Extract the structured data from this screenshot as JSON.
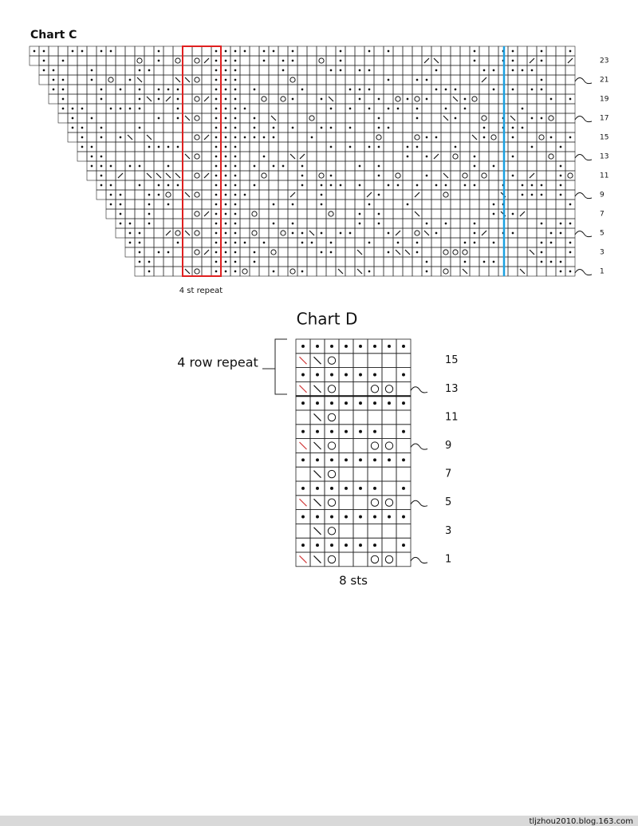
{
  "chart_c": {
    "title": "Chart C",
    "row_numbers": [
      "1",
      "3",
      "5",
      "7",
      "9",
      "11",
      "13",
      "15",
      "17",
      "19",
      "21",
      "23"
    ],
    "repeat_label": "4 st repeat"
  },
  "chart_d": {
    "title": "Chart D",
    "repeat_label": "4 row repeat",
    "row_numbers": [
      "1",
      "3",
      "5",
      "7",
      "9",
      "11",
      "13",
      "15"
    ],
    "width_label": "8 sts"
  },
  "footer": {
    "watermark": "tljzhou2010.blog.163.com"
  }
}
